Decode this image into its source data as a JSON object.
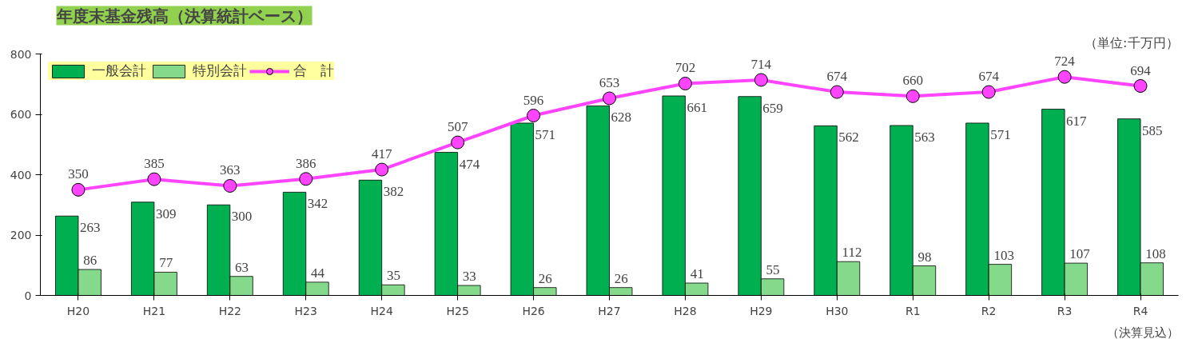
{
  "chart_data": {
    "type": "bar",
    "title": "年度末基金残高（決算統計ベース）",
    "annotations": [
      "（単位:千万円）",
      "（決算見込）"
    ],
    "categories": [
      "H20",
      "H21",
      "H22",
      "H23",
      "H24",
      "H25",
      "H26",
      "H27",
      "H28",
      "H29",
      "H30",
      "R1",
      "R2",
      "R3",
      "R4"
    ],
    "series": [
      {
        "name": "一般会計",
        "color": "#00b050",
        "values": [
          263,
          309,
          300,
          342,
          382,
          474,
          571,
          628,
          661,
          659,
          562,
          563,
          571,
          617,
          585
        ]
      },
      {
        "name": "特別会計",
        "color": "#85d98a",
        "values": [
          86,
          77,
          63,
          44,
          35,
          33,
          26,
          26,
          41,
          55,
          112,
          98,
          103,
          107,
          108
        ]
      },
      {
        "name": "合　計",
        "type": "line",
        "color": "#ff44ff",
        "marker": "circle",
        "values": [
          350,
          385,
          363,
          386,
          417,
          507,
          596,
          653,
          702,
          714,
          674,
          660,
          674,
          724,
          694
        ]
      }
    ],
    "ylim": [
      0,
      800
    ],
    "yticks": [
      0,
      200,
      400,
      600,
      800
    ],
    "data_labels": true,
    "legend": "top left",
    "grid": false
  }
}
